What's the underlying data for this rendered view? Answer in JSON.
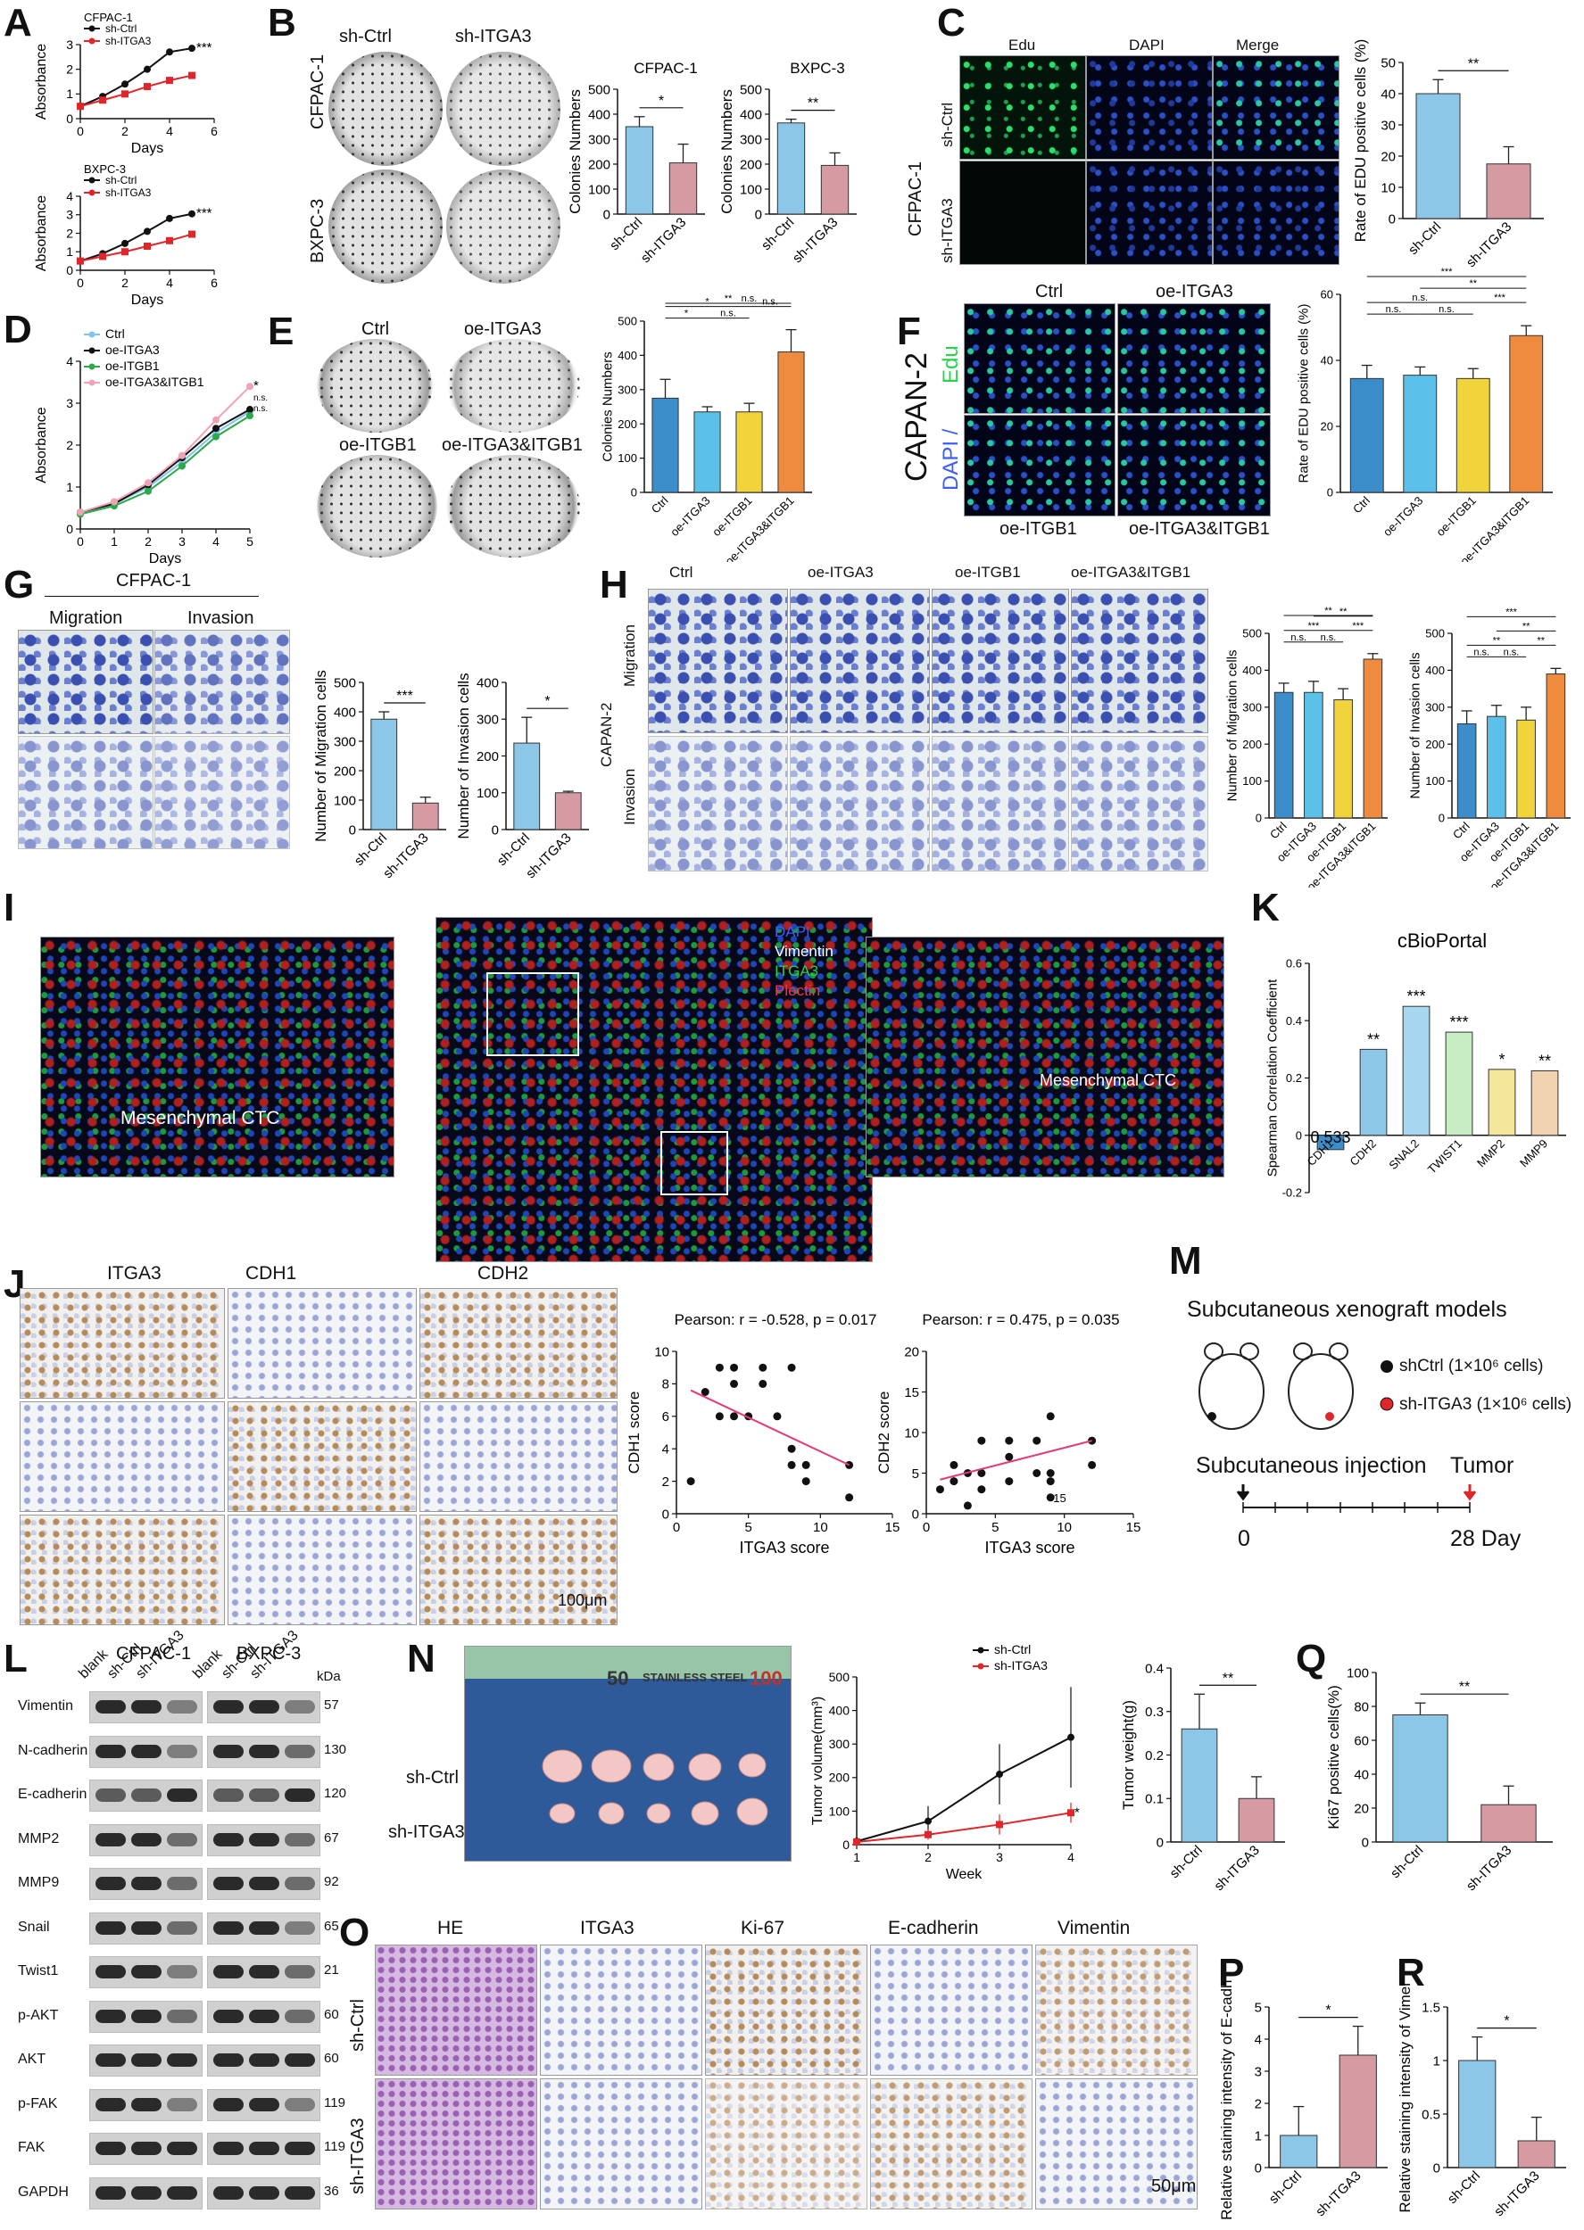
{
  "panels": [
    "A",
    "B",
    "C",
    "D",
    "E",
    "F",
    "G",
    "H",
    "I",
    "J",
    "K",
    "L",
    "M",
    "N",
    "O",
    "P",
    "Q",
    "R"
  ],
  "A": {
    "chart_data": [
      {
        "type": "line",
        "title": "CFPAC-1",
        "xlabel": "Days",
        "ylabel": "Absorbance",
        "x": [
          0,
          1,
          2,
          3,
          4,
          5
        ],
        "series": [
          {
            "name": "sh-Ctrl",
            "values": [
              0.5,
              0.9,
              1.4,
              2.0,
              2.7,
              2.85
            ],
            "color": "#111111"
          },
          {
            "name": "sh-ITGA3",
            "values": [
              0.5,
              0.75,
              1.0,
              1.3,
              1.55,
              1.75
            ],
            "color": "#e0262b"
          }
        ],
        "ylim": [
          0,
          3
        ],
        "yticks": [
          0,
          1,
          2,
          3
        ],
        "xticks": [
          0,
          2,
          4,
          6
        ],
        "sig": "***"
      },
      {
        "type": "line",
        "title": "BXPC-3",
        "xlabel": "Days",
        "ylabel": "Absorbance",
        "x": [
          0,
          1,
          2,
          3,
          4,
          5
        ],
        "series": [
          {
            "name": "sh-Ctrl",
            "values": [
              0.5,
              0.9,
              1.45,
              2.1,
              2.8,
              3.05
            ],
            "color": "#111111"
          },
          {
            "name": "sh-ITGA3",
            "values": [
              0.5,
              0.75,
              1.0,
              1.3,
              1.6,
              1.95
            ],
            "color": "#e0262b"
          }
        ],
        "ylim": [
          0,
          4
        ],
        "yticks": [
          0,
          1,
          2,
          3,
          4
        ],
        "xticks": [
          0,
          2,
          4,
          6
        ],
        "sig": "***"
      }
    ]
  },
  "B": {
    "col_labels": [
      "sh-Ctrl",
      "sh-ITGA3"
    ],
    "row_labels": [
      "CFPAC-1",
      "BXPC-3"
    ],
    "chart_data": [
      {
        "type": "bar",
        "title": "CFPAC-1",
        "ylabel": "Colonies Numbers",
        "categories": [
          "sh-Ctrl",
          "sh-ITGA3"
        ],
        "values": [
          350,
          205
        ],
        "errors": [
          40,
          75
        ],
        "colors": [
          "#8dc7e8",
          "#d69aa3"
        ],
        "ylim": [
          0,
          500
        ],
        "yticks": [
          0,
          100,
          200,
          300,
          400,
          500
        ],
        "sig": "*"
      },
      {
        "type": "bar",
        "title": "BXPC-3",
        "ylabel": "Colonies Numbers",
        "categories": [
          "sh-Ctrl",
          "sh-ITGA3"
        ],
        "values": [
          365,
          195
        ],
        "errors": [
          15,
          50
        ],
        "colors": [
          "#8dc7e8",
          "#d69aa3"
        ],
        "ylim": [
          0,
          500
        ],
        "yticks": [
          0,
          100,
          200,
          300,
          400,
          500
        ],
        "sig": "**"
      }
    ]
  },
  "C": {
    "col_labels": [
      "Edu",
      "DAPI",
      "Merge"
    ],
    "row_labels": [
      "sh-Ctrl",
      "sh-ITGA3"
    ],
    "side_label": "CFPAC-1",
    "chart_data": {
      "type": "bar",
      "ylabel": "Rate of EDU positive cells (%)",
      "categories": [
        "sh-Ctrl",
        "sh-ITGA3"
      ],
      "values": [
        40,
        17.5
      ],
      "errors": [
        4.5,
        5.5
      ],
      "colors": [
        "#8dc7e8",
        "#d69aa3"
      ],
      "ylim": [
        0,
        50
      ],
      "yticks": [
        0,
        10,
        20,
        30,
        40,
        50
      ],
      "sig": "**"
    }
  },
  "D": {
    "chart_data": {
      "type": "line",
      "xlabel": "Days",
      "ylabel": "Absorbance",
      "x": [
        0,
        1,
        2,
        3,
        4,
        5
      ],
      "series": [
        {
          "name": "Ctrl",
          "values": [
            0.4,
            0.6,
            1.0,
            1.6,
            2.3,
            2.8
          ],
          "color": "#7ec6ec"
        },
        {
          "name": "oe-ITGA3",
          "values": [
            0.4,
            0.6,
            1.05,
            1.7,
            2.4,
            2.85
          ],
          "color": "#111111"
        },
        {
          "name": "oe-ITGB1",
          "values": [
            0.35,
            0.55,
            0.9,
            1.5,
            2.2,
            2.7
          ],
          "color": "#2aa84a"
        },
        {
          "name": "oe-ITGA3&ITGB1",
          "values": [
            0.4,
            0.65,
            1.1,
            1.75,
            2.6,
            3.4
          ],
          "color": "#f0a3b5"
        }
      ],
      "ylim": [
        0,
        4
      ],
      "yticks": [
        0,
        1,
        2,
        3,
        4
      ],
      "xticks": [
        0,
        1,
        2,
        3,
        4,
        5
      ],
      "sig": [
        "*",
        "n.s.",
        "n.s."
      ]
    }
  },
  "E": {
    "dish_labels": [
      "Ctrl",
      "oe-ITGA3",
      "oe-ITGB1",
      "oe-ITGA3&ITGB1"
    ],
    "chart_data": {
      "type": "bar",
      "ylabel": "Colonies Numbers",
      "categories": [
        "Ctrl",
        "oe-ITGA3",
        "oe-ITGB1",
        "oe-ITGA3&ITGB1"
      ],
      "values": [
        275,
        235,
        235,
        410
      ],
      "errors": [
        55,
        15,
        25,
        65
      ],
      "colors": [
        "#3b8ec9",
        "#5bc1e8",
        "#f1d33b",
        "#ef8b3f"
      ],
      "ylim": [
        0,
        500
      ],
      "yticks": [
        0,
        100,
        200,
        300,
        400,
        500
      ],
      "brackets": [
        "**",
        "n.s.",
        "n.s.",
        "*",
        "n.s.",
        "*"
      ]
    }
  },
  "F": {
    "col_labels_top": [
      "Ctrl",
      "oe-ITGA3"
    ],
    "col_labels_bottom": [
      "oe-ITGB1",
      "oe-ITGA3&ITGB1"
    ],
    "side_label": "CAPAN-2",
    "stain_edu": "Edu",
    "stain_dapi": "DAPI /",
    "chart_data": {
      "type": "bar",
      "ylabel": "Rate of EDU positive cells (%)",
      "categories": [
        "Ctrl",
        "oe-ITGA3",
        "oe-ITGB1",
        "oe-ITGA3&ITGB1"
      ],
      "values": [
        34.5,
        35.5,
        34.5,
        47.5
      ],
      "errors": [
        4,
        2.5,
        3,
        3
      ],
      "colors": [
        "#3b8ec9",
        "#5bc1e8",
        "#f1d33b",
        "#ef8b3f"
      ],
      "ylim": [
        0,
        60
      ],
      "yticks": [
        0,
        20,
        40,
        60
      ],
      "brackets": [
        "***",
        "**",
        "***",
        "n.s.",
        "n.s.",
        "n.s."
      ]
    }
  },
  "G": {
    "title": "CFPAC-1",
    "col_labels": [
      "Migration",
      "Invasion"
    ],
    "chart_data": [
      {
        "type": "bar",
        "ylabel": "Number of Migration cells",
        "categories": [
          "sh-Ctrl",
          "sh-ITGA3"
        ],
        "values": [
          375,
          90
        ],
        "errors": [
          25,
          20
        ],
        "colors": [
          "#8dc7e8",
          "#d69aa3"
        ],
        "ylim": [
          0,
          500
        ],
        "yticks": [
          0,
          100,
          200,
          300,
          400,
          500
        ],
        "sig": "***"
      },
      {
        "type": "bar",
        "ylabel": "Number of Invasion cells",
        "categories": [
          "sh-Ctrl",
          "sh-ITGA3"
        ],
        "values": [
          235,
          100
        ],
        "errors": [
          70,
          4
        ],
        "colors": [
          "#8dc7e8",
          "#d69aa3"
        ],
        "ylim": [
          0,
          400
        ],
        "yticks": [
          0,
          100,
          200,
          300,
          400
        ],
        "sig": "*"
      }
    ]
  },
  "H": {
    "col_labels": [
      "Ctrl",
      "oe-ITGA3",
      "oe-ITGB1",
      "oe-ITGA3&ITGB1"
    ],
    "row_labels": [
      "Migration",
      "Invasion"
    ],
    "side_label": "CAPAN-2",
    "chart_data": [
      {
        "type": "bar",
        "ylabel": "Number of Migration cells",
        "categories": [
          "Ctrl",
          "oe-ITGA3",
          "oe-ITGB1",
          "oe-ITGA3&ITGB1"
        ],
        "values": [
          340,
          340,
          320,
          430
        ],
        "errors": [
          25,
          30,
          30,
          15
        ],
        "colors": [
          "#3b8ec9",
          "#5bc1e8",
          "#f1d33b",
          "#ef8b3f"
        ],
        "ylim": [
          0,
          500
        ],
        "yticks": [
          0,
          100,
          200,
          300,
          400,
          500
        ],
        "brackets": [
          "**",
          "**",
          "***",
          "n.s.",
          "n.s.",
          "***"
        ]
      },
      {
        "type": "bar",
        "ylabel": "Number of Invasion cells",
        "categories": [
          "Ctrl",
          "oe-ITGA3",
          "oe-ITGB1",
          "oe-ITGA3&ITGB1"
        ],
        "values": [
          255,
          275,
          265,
          390
        ],
        "errors": [
          35,
          30,
          35,
          15
        ],
        "colors": [
          "#3b8ec9",
          "#5bc1e8",
          "#f1d33b",
          "#ef8b3f"
        ],
        "ylim": [
          0,
          500
        ],
        "yticks": [
          0,
          100,
          200,
          300,
          400,
          500
        ],
        "brackets": [
          "***",
          "**",
          "**",
          "n.s.",
          "n.s.",
          "**"
        ]
      }
    ]
  },
  "I": {
    "legend": [
      {
        "label": "DAPI",
        "color": "#3a5cff"
      },
      {
        "label": "Vimentin",
        "color": "#ffffff"
      },
      {
        "label": "ITGA3",
        "color": "#27d34a"
      },
      {
        "label": "Plectin",
        "color": "#ff3040"
      }
    ],
    "ctc_label": "Mesenchymal CTC"
  },
  "J": {
    "col_labels": [
      "ITGA3",
      "CDH1",
      "CDH2"
    ],
    "scale": "100μm",
    "chart_data": [
      {
        "type": "scatter",
        "title": "Pearson: r = -0.528, p = 0.017",
        "xlabel": "ITGA3 score",
        "ylabel": "CDH1 score",
        "x": [
          1,
          2,
          3,
          3,
          4,
          4,
          4,
          5,
          6,
          6,
          7,
          8,
          8,
          8,
          9,
          9,
          12,
          12
        ],
        "y": [
          2,
          7.5,
          6,
          9,
          6,
          8,
          9,
          6,
          9,
          8,
          6,
          9,
          4,
          3,
          3,
          2,
          3,
          1
        ],
        "xlim": [
          0,
          15
        ],
        "ylim": [
          0,
          10
        ],
        "xticks": [
          0,
          5,
          10,
          15
        ],
        "yticks": [
          0,
          2,
          4,
          6,
          8,
          10
        ],
        "fit": [
          [
            1,
            7.6
          ],
          [
            12,
            3.0
          ]
        ]
      },
      {
        "type": "scatter",
        "title": "Pearson: r = 0.475, p = 0.035",
        "xlabel": "ITGA3 score",
        "ylabel": "CDH2 score",
        "x": [
          1,
          2,
          2,
          3,
          3,
          4,
          4,
          4,
          6,
          6,
          6,
          8,
          8,
          9,
          9,
          9,
          9,
          12,
          12
        ],
        "y": [
          3,
          4,
          6,
          1,
          5,
          3,
          5,
          9,
          4,
          7,
          9,
          5,
          9,
          2,
          4,
          5,
          12,
          6,
          9
        ],
        "xlim": [
          0,
          15
        ],
        "ylim": [
          0,
          20
        ],
        "xticks": [
          0,
          5,
          10,
          15
        ],
        "yticks": [
          0,
          5,
          10,
          15,
          20
        ],
        "fit": [
          [
            1,
            4.2
          ],
          [
            12,
            9.0
          ]
        ],
        "annot": "15"
      }
    ]
  },
  "K": {
    "chart_data": {
      "type": "bar",
      "title": "cBioPortal",
      "ylabel": "Spearman Correlation Coefficient",
      "categories": [
        "CDH1",
        "CDH2",
        "SNAL2",
        "TWIST1",
        "MMP2",
        "MMP9"
      ],
      "values": [
        -0.05,
        0.3,
        0.45,
        0.36,
        0.23,
        0.225
      ],
      "colors": [
        "#3b8ec9",
        "#8dc7e8",
        "#a6d6f0",
        "#c8ecc4",
        "#f2e79a",
        "#f1d3b0"
      ],
      "labels": [
        "0.533",
        "**",
        "***",
        "***",
        "*",
        "**"
      ],
      "ylim": [
        -0.2,
        0.6
      ],
      "yticks": [
        -0.2,
        0.0,
        0.2,
        0.4,
        0.6
      ]
    }
  },
  "L": {
    "cell_lines": [
      "CFPAC-1",
      "BXPC-3"
    ],
    "lanes": [
      "blank",
      "sh-Ctrl",
      "sh-ITGA3",
      "blank",
      "sh-Ctrl",
      "sh-ITGA3"
    ],
    "kda_label": "kDa",
    "rows": [
      {
        "name": "Vimentin",
        "kda": "57"
      },
      {
        "name": "N-cadherin",
        "kda": "130"
      },
      {
        "name": "E-cadherin",
        "kda": "120"
      },
      {
        "name": "MMP2",
        "kda": "67"
      },
      {
        "name": "MMP9",
        "kda": "92"
      },
      {
        "name": "Snail",
        "kda": "65"
      },
      {
        "name": "Twist1",
        "kda": "21"
      },
      {
        "name": "p-AKT",
        "kda": "60"
      },
      {
        "name": "AKT",
        "kda": "60"
      },
      {
        "name": "p-FAK",
        "kda": "119"
      },
      {
        "name": "FAK",
        "kda": "119"
      },
      {
        "name": "GAPDH",
        "kda": "36"
      }
    ],
    "band_intensity": [
      [
        1,
        1,
        0.5,
        1,
        1,
        0.5
      ],
      [
        1,
        1,
        0.5,
        1,
        1,
        0.6
      ],
      [
        0.7,
        0.7,
        1,
        0.7,
        0.7,
        1
      ],
      [
        1,
        1,
        0.6,
        1,
        1,
        0.6
      ],
      [
        1,
        1,
        0.6,
        1,
        1,
        0.6
      ],
      [
        1,
        1,
        0.6,
        1,
        1,
        0.5
      ],
      [
        1,
        1,
        0.5,
        1,
        1,
        0.6
      ],
      [
        1,
        1,
        0.6,
        1,
        1,
        0.6
      ],
      [
        1,
        1,
        1,
        1,
        1,
        1
      ],
      [
        1,
        1,
        0.5,
        1,
        1,
        0.5
      ],
      [
        1,
        1,
        1,
        1,
        1,
        1
      ],
      [
        1,
        1,
        1,
        1,
        1,
        1
      ]
    ]
  },
  "M": {
    "title": "Subcutaneous xenograft models",
    "legend": [
      {
        "label": "shCtrl (1×10⁶ cells)",
        "color": "#111111"
      },
      {
        "label": "sh-ITGA3 (1×10⁶ cells)",
        "color": "#e0262b"
      }
    ],
    "injection": "Subcutaneous injection",
    "tumor": "Tumor",
    "start": "0",
    "end": "28 Day"
  },
  "N": {
    "row_labels": [
      "sh-Ctrl",
      "sh-ITGA3"
    ],
    "ruler_text": [
      "50",
      "STAINLESS STEEL",
      "100"
    ],
    "chart_data": [
      {
        "type": "line",
        "xlabel": "Week",
        "ylabel": "Tumor volume(mm³)",
        "x": [
          1,
          2,
          3,
          4
        ],
        "series": [
          {
            "name": "sh-Ctrl",
            "values": [
              10,
              70,
              210,
              320
            ],
            "errors": [
              5,
              45,
              90,
              150
            ],
            "color": "#111111"
          },
          {
            "name": "sh-ITGA3",
            "values": [
              8,
              30,
              60,
              95
            ],
            "errors": [
              4,
              15,
              30,
              30
            ],
            "color": "#e0262b"
          }
        ],
        "ylim": [
          0,
          500
        ],
        "yticks": [
          0,
          100,
          200,
          300,
          400,
          500
        ],
        "sig": "*"
      },
      {
        "type": "bar",
        "ylabel": "Tumor weight(g)",
        "categories": [
          "sh-Ctrl",
          "sh-ITGA3"
        ],
        "values": [
          0.26,
          0.1
        ],
        "errors": [
          0.08,
          0.05
        ],
        "colors": [
          "#8dc7e8",
          "#d69aa3"
        ],
        "ylim": [
          0,
          0.4
        ],
        "yticks": [
          0.0,
          0.1,
          0.2,
          0.3,
          0.4
        ],
        "sig": "**"
      }
    ]
  },
  "O": {
    "col_labels": [
      "HE",
      "ITGA3",
      "Ki-67",
      "E-cadherin",
      "Vimentin"
    ],
    "row_labels": [
      "sh-Ctrl",
      "sh-ITGA3"
    ],
    "scale": "50μm"
  },
  "P": {
    "chart_data": {
      "type": "bar",
      "ylabel": "Ki67 positive cells(%)",
      "categories": [
        "sh-Ctrl",
        "sh-ITGA3"
      ],
      "values": [
        75,
        22
      ],
      "errors": [
        7,
        11
      ],
      "colors": [
        "#8dc7e8",
        "#d69aa3"
      ],
      "ylim": [
        0,
        100
      ],
      "yticks": [
        0,
        20,
        40,
        60,
        80,
        100
      ],
      "sig": "**"
    }
  },
  "Q": {
    "chart_data": {
      "type": "bar",
      "ylabel": "Relative staining intensity of E-cadherin",
      "categories": [
        "sh-Ctrl",
        "sh-ITGA3"
      ],
      "values": [
        1.0,
        3.5
      ],
      "errors": [
        0.9,
        0.9
      ],
      "colors": [
        "#8dc7e8",
        "#d69aa3"
      ],
      "ylim": [
        0,
        5
      ],
      "yticks": [
        0,
        1,
        2,
        3,
        4,
        5
      ],
      "sig": "*"
    }
  },
  "R": {
    "chart_data": {
      "type": "bar",
      "ylabel": "Relative staining intensity of Vimentin",
      "categories": [
        "sh-Ctrl",
        "sh-ITGA3"
      ],
      "values": [
        1.0,
        0.25
      ],
      "errors": [
        0.22,
        0.22
      ],
      "colors": [
        "#8dc7e8",
        "#d69aa3"
      ],
      "ylim": [
        0,
        1.5
      ],
      "yticks": [
        0.0,
        0.5,
        1.0,
        1.5
      ],
      "sig": "*"
    }
  }
}
